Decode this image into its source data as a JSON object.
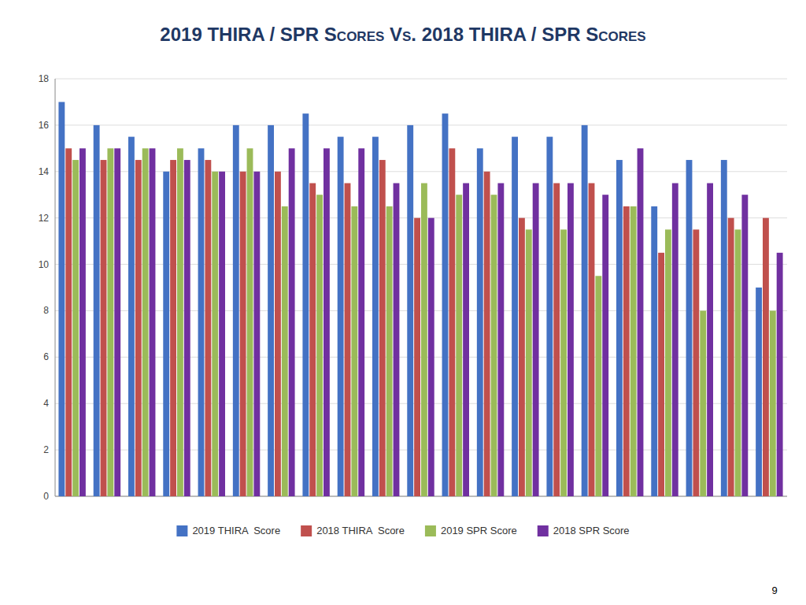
{
  "chart_data": {
    "type": "bar",
    "title": "2019 THIRA / SPR Scores Vs. 2018 THIRA / SPR Scores",
    "categories": [
      null,
      null,
      null,
      null,
      null,
      null,
      null,
      null,
      null,
      null,
      null,
      null,
      null,
      null,
      null,
      null,
      null,
      null,
      null,
      null,
      null
    ],
    "series": [
      {
        "name": "2019 THIRA  Score",
        "color": "#4472C4",
        "values": [
          17,
          16,
          15.5,
          14,
          15,
          16,
          16,
          16.5,
          15.5,
          15.5,
          16,
          16.5,
          15,
          15.5,
          15.5,
          16,
          14.5,
          12.5,
          14.5,
          14.5,
          9
        ]
      },
      {
        "name": "2018 THIRA  Score",
        "color": "#C0504D",
        "values": [
          15,
          14.5,
          14.5,
          14.5,
          14.5,
          14,
          14,
          13.5,
          13.5,
          14.5,
          12,
          15,
          14,
          12,
          13.5,
          13.5,
          12.5,
          10.5,
          11.5,
          12,
          12
        ]
      },
      {
        "name": "2019 SPR Score",
        "color": "#9BBB59",
        "values": [
          14.5,
          15,
          15,
          15,
          14,
          15,
          12.5,
          13,
          12.5,
          12.5,
          13.5,
          13,
          13,
          11.5,
          11.5,
          9.5,
          12.5,
          11.5,
          8,
          11.5,
          8
        ]
      },
      {
        "name": "2018 SPR Score",
        "color": "#7030A0",
        "values": [
          15,
          15,
          15,
          14.5,
          14,
          14,
          15,
          15,
          15,
          13.5,
          12,
          13.5,
          13.5,
          13.5,
          13.5,
          13,
          15,
          13.5,
          13.5,
          13,
          10.5
        ]
      }
    ],
    "ylim": [
      0,
      18
    ],
    "yticks": [
      0,
      2,
      4,
      6,
      8,
      10,
      12,
      14,
      16,
      18
    ],
    "grid": true,
    "legend": "bottom",
    "tick_labels": "y",
    "annotations": [
      {
        "text": "9"
      }
    ]
  }
}
